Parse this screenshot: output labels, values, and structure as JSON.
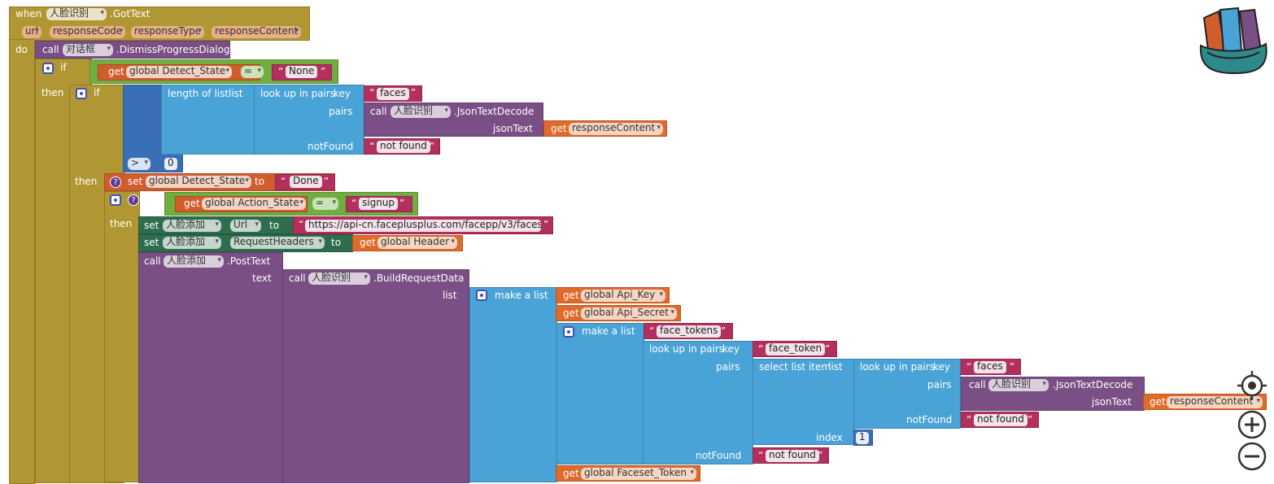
{
  "event": {
    "when": "when",
    "component": "人脸识别",
    "event_name": ".GotText",
    "params": [
      "url",
      "responseCode",
      "responseType",
      "responseContent"
    ],
    "do": "do"
  },
  "dismiss": {
    "call": "call",
    "component": "对话框",
    "method": ".DismissProgressDialog"
  },
  "if1": {
    "label": "if",
    "get": "get",
    "var": "global Detect_State",
    "op": "=",
    "value": "None"
  },
  "then1": "then",
  "if2": {
    "label": "if",
    "length": "length of list",
    "list": "list",
    "lookup": "look up in pairs",
    "key": "key",
    "key_value": "faces",
    "pairs": "pairs",
    "call": "call",
    "component": "人脸识别",
    "method": ".JsonTextDecode",
    "jsonText": "jsonText",
    "get": "get",
    "response": "responseContent",
    "notFound": "notFound",
    "notFound_value": "not found",
    "op": ">",
    "zero": "0"
  },
  "then2": "then",
  "set_state": {
    "set": "set",
    "var": "global Detect_State",
    "to": "to",
    "value": "Done"
  },
  "if3": {
    "label": "if",
    "get": "get",
    "var": "global Action_State",
    "op": "=",
    "value": "signup"
  },
  "then3": "then",
  "set_url": {
    "set": "set",
    "component": "人脸添加",
    "prop": "Url",
    "to": "to",
    "value": "https://api-cn.faceplusplus.com/facepp/v3/facese..."
  },
  "set_headers": {
    "set": "set",
    "component": "人脸添加",
    "prop": "RequestHeaders",
    "to": "to",
    "get": "get",
    "var": "global Header"
  },
  "post": {
    "call": "call",
    "component": "人脸添加",
    "method": ".PostText",
    "text": "text"
  },
  "build": {
    "call": "call",
    "component": "人脸识别",
    "method": ".BuildRequestData",
    "list": "list"
  },
  "make_list": {
    "label": "make a list",
    "get": "get",
    "api_key": "global Api_Key",
    "api_secret": "global Api_Secret",
    "faceset": "global Faceset_Token"
  },
  "make_list2": {
    "label": "make a list",
    "value": "face_tokens"
  },
  "lookup2": {
    "label": "look up in pairs",
    "key": "key",
    "key_value": "face_token",
    "pairs": "pairs",
    "notFound": "notFound",
    "notFound_value": "not found"
  },
  "select": {
    "label": "select list item",
    "list": "list",
    "index": "index",
    "index_value": "1"
  },
  "lookup3": {
    "label": "look up in pairs",
    "key": "key",
    "key_value": "faces",
    "pairs": "pairs",
    "call": "call",
    "component": "人脸识别",
    "method": ".JsonTextDecode",
    "jsonText": "jsonText",
    "get": "get",
    "response": "responseContent",
    "notFound": "notFound",
    "notFound_value": "not found"
  },
  "icons": {
    "backpack": "backpack-icon",
    "center": "crosshair-icon",
    "zoom_in": "zoom-in-icon",
    "zoom_out": "zoom-out-icon"
  }
}
